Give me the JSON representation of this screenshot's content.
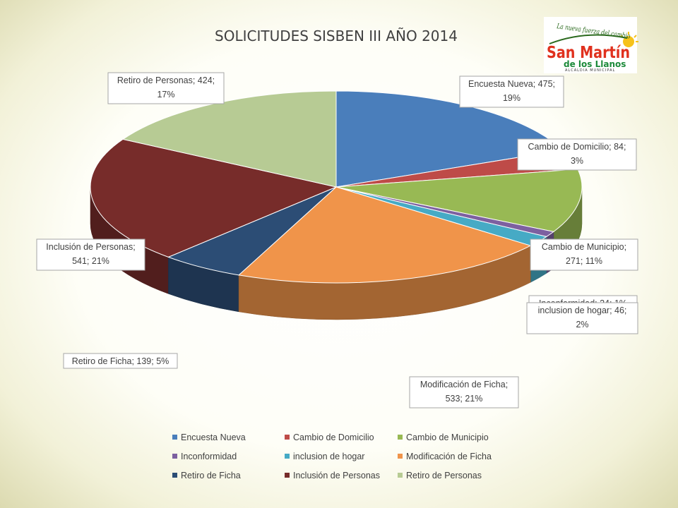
{
  "chart_data": {
    "type": "pie",
    "title": "SOLICITUDES SISBEN III AÑO 2014",
    "slices": [
      {
        "name": "Encuesta Nueva",
        "value": 475,
        "percent": "19%",
        "color": "#4a7ebb"
      },
      {
        "name": "Cambio de Domicilio",
        "value": 84,
        "percent": "3%",
        "color": "#be4b48"
      },
      {
        "name": "Cambio de Municipio",
        "value": 271,
        "percent": "11%",
        "color": "#98b954"
      },
      {
        "name": "Inconformidad",
        "value": 24,
        "percent": "1%",
        "color": "#7d60a0"
      },
      {
        "name": "inclusion de hogar",
        "value": 46,
        "percent": "2%",
        "color": "#46aac5"
      },
      {
        "name": "Modificación de Ficha",
        "value": 533,
        "percent": "21%",
        "color": "#f0944a"
      },
      {
        "name": "Retiro de Ficha",
        "value": 139,
        "percent": "5%",
        "color": "#2c4d75"
      },
      {
        "name": "Inclusión de Personas",
        "value": 541,
        "percent": "21%",
        "color": "#772c2a"
      },
      {
        "name": "Retiro de Personas",
        "value": 424,
        "percent": "17%",
        "color": "#b7cb94"
      }
    ],
    "labels": [
      {
        "lines": [
          "Encuesta Nueva; 475;",
          "19%"
        ]
      },
      {
        "lines": [
          "Cambio de Domicilio; 84;",
          "3%"
        ]
      },
      {
        "lines": [
          "Cambio de Municipio;",
          "271; 11%"
        ]
      },
      {
        "lines": [
          "Inconformidad; 24; 1%"
        ]
      },
      {
        "lines": [
          "inclusion de hogar; 46;",
          "2%"
        ]
      },
      {
        "lines": [
          "Modificación de Ficha;",
          "533; 21%"
        ]
      },
      {
        "lines": [
          "Retiro de Ficha; 139; 5%"
        ]
      },
      {
        "lines": [
          "Inclusión de Personas;",
          "541; 21%"
        ]
      },
      {
        "lines": [
          "Retiro de Personas; 424;",
          "17%"
        ]
      }
    ],
    "legend_position": "bottom"
  },
  "logo": {
    "script_text": "La nueva fuerza del cambio",
    "main_text": "San Martín",
    "sub_text": "de los Llanos",
    "tagline": "ALCALDIA MUNICIPAL"
  }
}
